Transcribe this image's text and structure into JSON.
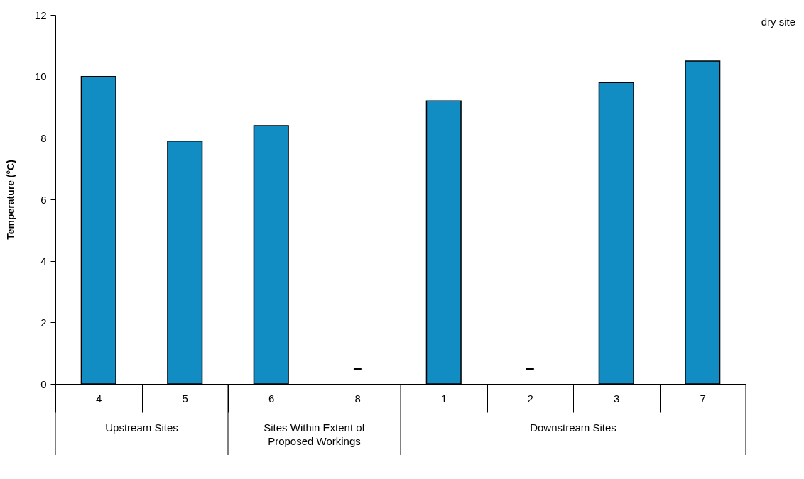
{
  "chart_data": {
    "type": "bar",
    "ylabel": "Temperature (°C)",
    "categories": [
      "4",
      "5",
      "6",
      "8",
      "1",
      "2",
      "3",
      "7"
    ],
    "values": [
      10.0,
      7.9,
      8.4,
      null,
      9.2,
      null,
      9.8,
      10.5
    ],
    "color": "#118dc4",
    "ylim": [
      0,
      12
    ],
    "yticks": [
      0,
      2,
      4,
      6,
      8,
      10,
      12
    ],
    "grid": false,
    "annotations": [
      "– dry site",
      "–",
      "–",
      "Upstream Sites",
      "Sites Within Extent of Proposed Workings",
      "Downstream Sites"
    ]
  }
}
